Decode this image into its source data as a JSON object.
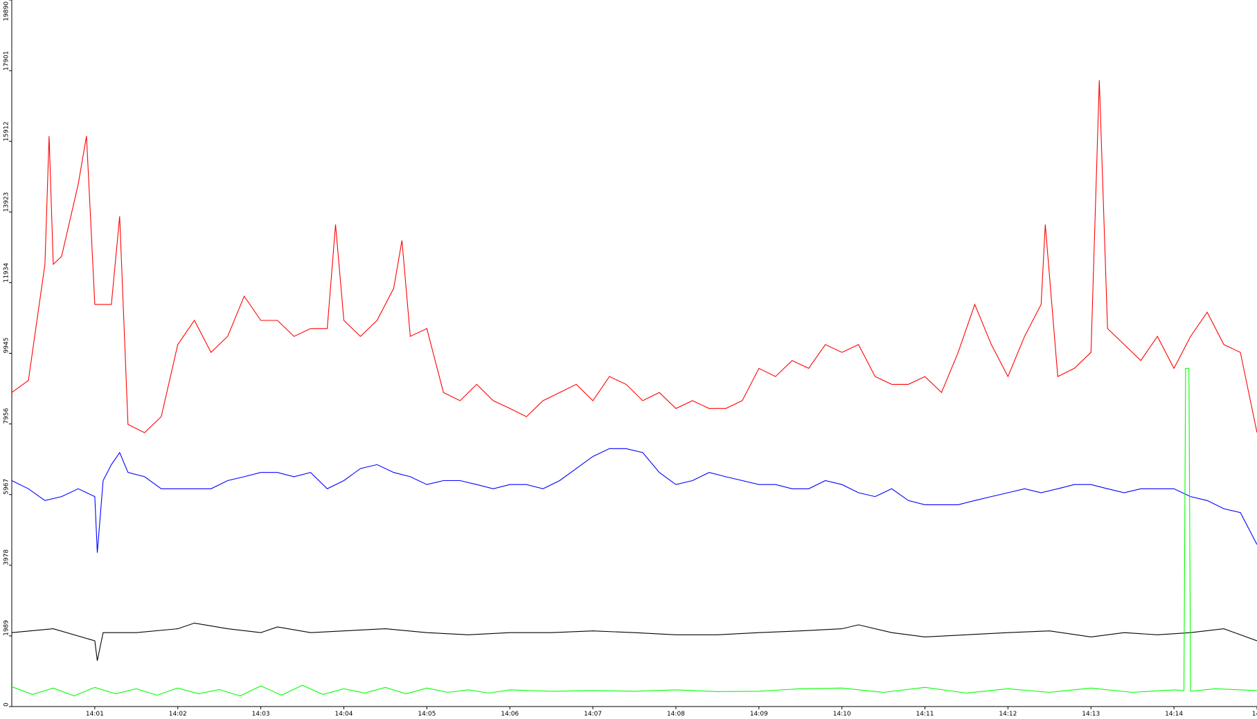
{
  "chart_data": {
    "type": "line",
    "xlim": [
      0,
      15
    ],
    "xticks": [
      {
        "value": 1,
        "label": "14:01"
      },
      {
        "value": 2,
        "label": "14:02"
      },
      {
        "value": 3,
        "label": "14:03"
      },
      {
        "value": 4,
        "label": "14:04"
      },
      {
        "value": 5,
        "label": "14:05"
      },
      {
        "value": 6,
        "label": "14:06"
      },
      {
        "value": 7,
        "label": "14:07"
      },
      {
        "value": 8,
        "label": "14:08"
      },
      {
        "value": 9,
        "label": "14:09"
      },
      {
        "value": 10,
        "label": "14:10"
      },
      {
        "value": 11,
        "label": "14:11"
      },
      {
        "value": 12,
        "label": "14:12"
      },
      {
        "value": 13,
        "label": "14:13"
      },
      {
        "value": 14,
        "label": "14:14"
      },
      {
        "value": 15,
        "label": "14:"
      }
    ],
    "ylim": [
      0,
      19890
    ],
    "yticks": [
      0,
      1989,
      3978,
      5967,
      7956,
      9945,
      11934,
      13923,
      15912,
      17901,
      19890
    ],
    "series": [
      {
        "color": "#ff0000",
        "x": [
          0,
          0.2,
          0.4,
          0.45,
          0.5,
          0.6,
          0.8,
          0.9,
          1.0,
          1.2,
          1.3,
          1.4,
          1.6,
          1.8,
          2.0,
          2.2,
          2.4,
          2.6,
          2.8,
          3.0,
          3.2,
          3.4,
          3.6,
          3.8,
          3.9,
          4.0,
          4.2,
          4.4,
          4.6,
          4.7,
          4.8,
          5.0,
          5.2,
          5.4,
          5.6,
          5.8,
          6.0,
          6.2,
          6.4,
          6.6,
          6.8,
          7.0,
          7.2,
          7.4,
          7.6,
          7.8,
          8.0,
          8.2,
          8.4,
          8.6,
          8.8,
          9.0,
          9.2,
          9.4,
          9.6,
          9.8,
          10.0,
          10.2,
          10.4,
          10.6,
          10.8,
          11.0,
          11.2,
          11.4,
          11.6,
          11.8,
          12.0,
          12.2,
          12.4,
          12.45,
          12.6,
          12.8,
          13.0,
          13.1,
          13.2,
          13.4,
          13.6,
          13.8,
          14.0,
          14.2,
          14.4,
          14.6,
          14.8,
          15.0
        ],
        "values": [
          8840,
          9180,
          12450,
          16060,
          12450,
          12670,
          14700,
          16060,
          11320,
          11320,
          13800,
          7940,
          7710,
          8160,
          10190,
          10870,
          9970,
          10420,
          11550,
          10870,
          10870,
          10420,
          10640,
          10640,
          13570,
          10870,
          10420,
          10870,
          11770,
          13120,
          10420,
          10640,
          8840,
          8610,
          9070,
          8610,
          8390,
          8160,
          8610,
          8840,
          9070,
          8610,
          9290,
          9070,
          8610,
          8840,
          8390,
          8610,
          8390,
          8390,
          8610,
          9520,
          9290,
          9740,
          9520,
          10190,
          9970,
          10190,
          9290,
          9070,
          9070,
          9290,
          8840,
          9970,
          11320,
          10190,
          9290,
          10420,
          11320,
          13570,
          9290,
          9520,
          9970,
          17630,
          10640,
          10190,
          9740,
          10420,
          9520,
          10420,
          11100,
          10190,
          9970,
          7710
        ]
      },
      {
        "color": "#0000ff",
        "x": [
          0,
          0.2,
          0.4,
          0.6,
          0.8,
          1.0,
          1.03,
          1.1,
          1.2,
          1.3,
          1.4,
          1.6,
          1.8,
          2.0,
          2.2,
          2.4,
          2.6,
          2.8,
          3.0,
          3.2,
          3.4,
          3.6,
          3.8,
          4.0,
          4.2,
          4.4,
          4.6,
          4.8,
          5.0,
          5.2,
          5.4,
          5.6,
          5.8,
          6.0,
          6.2,
          6.4,
          6.6,
          6.8,
          7.0,
          7.2,
          7.4,
          7.6,
          7.8,
          8.0,
          8.2,
          8.4,
          8.6,
          8.8,
          9.0,
          9.2,
          9.4,
          9.6,
          9.8,
          10.0,
          10.2,
          10.4,
          10.6,
          10.8,
          11.0,
          11.2,
          11.4,
          11.6,
          11.8,
          12.0,
          12.2,
          12.4,
          12.6,
          12.8,
          13.0,
          13.2,
          13.4,
          13.6,
          13.8,
          14.0,
          14.2,
          14.4,
          14.6,
          14.8,
          15.0
        ],
        "values": [
          6360,
          6130,
          5800,
          5910,
          6130,
          5910,
          4330,
          6360,
          6810,
          7150,
          6590,
          6470,
          6130,
          6130,
          6130,
          6130,
          6360,
          6470,
          6590,
          6590,
          6470,
          6590,
          6130,
          6360,
          6700,
          6810,
          6590,
          6470,
          6250,
          6360,
          6360,
          6250,
          6130,
          6250,
          6250,
          6130,
          6360,
          6700,
          7040,
          7260,
          7260,
          7150,
          6590,
          6250,
          6360,
          6590,
          6470,
          6360,
          6250,
          6250,
          6130,
          6130,
          6360,
          6250,
          6020,
          5910,
          6130,
          5800,
          5680,
          5680,
          5680,
          5800,
          5910,
          6020,
          6130,
          6020,
          6130,
          6250,
          6250,
          6130,
          6020,
          6130,
          6130,
          6130,
          5910,
          5800,
          5570,
          5460,
          4560
        ]
      },
      {
        "color": "#000000",
        "x": [
          0,
          0.5,
          1.0,
          1.03,
          1.1,
          1.5,
          2.0,
          2.2,
          2.6,
          3.0,
          3.2,
          3.6,
          4.0,
          4.5,
          5.0,
          5.5,
          6.0,
          6.5,
          7.0,
          7.5,
          8.0,
          8.5,
          9.0,
          9.5,
          10.0,
          10.2,
          10.6,
          11.0,
          11.5,
          12.0,
          12.5,
          13.0,
          13.4,
          13.8,
          14.2,
          14.6,
          15.0
        ],
        "values": [
          2080,
          2190,
          1850,
          1290,
          2080,
          2080,
          2190,
          2350,
          2190,
          2080,
          2240,
          2080,
          2130,
          2190,
          2080,
          2020,
          2080,
          2080,
          2130,
          2080,
          2020,
          2020,
          2080,
          2130,
          2190,
          2300,
          2080,
          1960,
          2020,
          2080,
          2130,
          1960,
          2080,
          2020,
          2080,
          2190,
          1850
        ]
      },
      {
        "color": "#00ff00",
        "x": [
          0,
          0.25,
          0.5,
          0.75,
          1.0,
          1.25,
          1.5,
          1.75,
          2.0,
          2.25,
          2.5,
          2.75,
          3.0,
          3.25,
          3.5,
          3.75,
          4.0,
          4.25,
          4.5,
          4.75,
          5.0,
          5.25,
          5.5,
          5.75,
          6.0,
          6.5,
          7.0,
          7.5,
          8.0,
          8.5,
          9.0,
          9.5,
          10.0,
          10.5,
          11.0,
          11.5,
          12.0,
          12.5,
          13.0,
          13.5,
          14.0,
          14.12,
          14.14,
          14.18,
          14.2,
          14.5,
          15.0
        ],
        "values": [
          560,
          340,
          520,
          300,
          540,
          360,
          500,
          320,
          520,
          360,
          480,
          300,
          580,
          320,
          600,
          340,
          500,
          380,
          540,
          360,
          520,
          400,
          470,
          380,
          470,
          430,
          450,
          430,
          470,
          420,
          430,
          500,
          520,
          400,
          540,
          380,
          500,
          400,
          520,
          400,
          470,
          450,
          9520,
          9520,
          430,
          500,
          450
        ]
      }
    ]
  }
}
